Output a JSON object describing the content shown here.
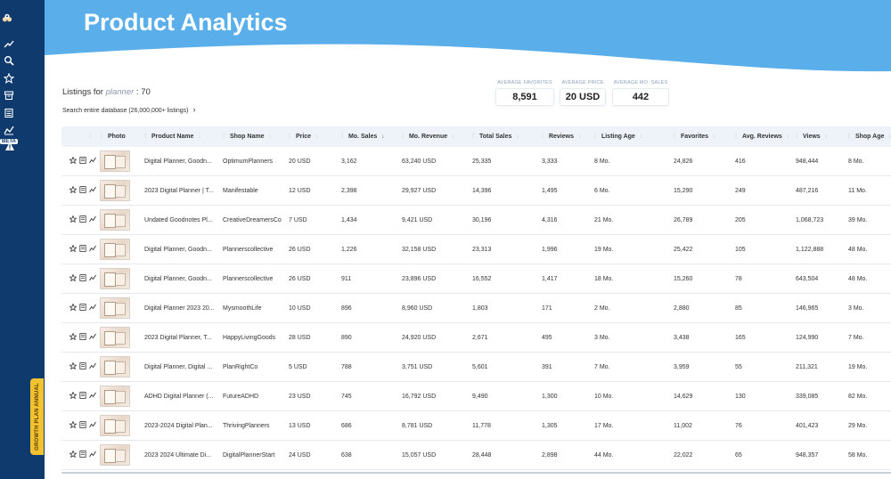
{
  "app": {
    "title": "Product Analytics"
  },
  "sidebar": {
    "icons": [
      "logo-icon",
      "trend-icon",
      "search-icon",
      "star-icon",
      "archive-icon",
      "calculator-icon",
      "chart-icon",
      "warning-icon"
    ],
    "beta_label": "BETA",
    "growth_tab": "GROWTH PLAN ANNUAL"
  },
  "listings": {
    "prefix": "Listings for",
    "keyword": "planner",
    "count_text": ": 70"
  },
  "search_db": {
    "label": "Search entire database (26,000,000+ listings)",
    "chevron": "›"
  },
  "stats": [
    {
      "label": "AVERAGE FAVORITES",
      "value": "8,591"
    },
    {
      "label": "AVERAGE PRICE",
      "value": "20 USD"
    },
    {
      "label": "AVERAGE MO. SALES",
      "value": "442"
    }
  ],
  "table": {
    "columns": [
      "Photo",
      "Product Name",
      "Shop Name",
      "Price",
      "Mo. Sales",
      "Mo. Revenue",
      "Total Sales",
      "Reviews",
      "Listing Age",
      "Favorites",
      "Avg. Reviews",
      "Views",
      "Shop Age"
    ],
    "sorted_column": "Mo. Sales",
    "rows": [
      [
        "Digital Planner, Goodn...",
        "OptimumPlanners",
        "20 USD",
        "3,162",
        "63,240 USD",
        "25,335",
        "3,333",
        "8 Mo.",
        "24,826",
        "416",
        "948,444",
        "8 Mo."
      ],
      [
        "2023 Digital Planner | T...",
        "Manifestable",
        "12 USD",
        "2,398",
        "29,927 USD",
        "14,396",
        "1,495",
        "6 Mo.",
        "15,290",
        "249",
        "487,216",
        "11 Mo."
      ],
      [
        "Undated Goodnotes Pl...",
        "CreativeDreamersCo",
        "7 USD",
        "1,434",
        "9,421 USD",
        "30,196",
        "4,316",
        "21 Mo.",
        "26,789",
        "205",
        "1,068,723",
        "39 Mo."
      ],
      [
        "Digital Planner, Goodn...",
        "Plannerscollective",
        "26 USD",
        "1,226",
        "32,158 USD",
        "23,313",
        "1,996",
        "19 Mo.",
        "25,422",
        "105",
        "1,122,888",
        "48 Mo."
      ],
      [
        "Digital Planner, Goodn...",
        "Plannerscollective",
        "26 USD",
        "911",
        "23,896 USD",
        "16,552",
        "1,417",
        "18 Mo.",
        "15,260",
        "78",
        "643,504",
        "48 Mo."
      ],
      [
        "Digital Planner 2023 20...",
        "MysmoothLife",
        "10 USD",
        "896",
        "8,960 USD",
        "1,803",
        "171",
        "2 Mo.",
        "2,880",
        "85",
        "146,965",
        "3 Mo."
      ],
      [
        "2023 Digital Planner, T...",
        "HappyLivingGoods",
        "28 USD",
        "890",
        "24,920 USD",
        "2,671",
        "495",
        "3 Mo.",
        "3,438",
        "165",
        "124,990",
        "7 Mo."
      ],
      [
        "Digital Planner, Digital ...",
        "PlanRightCo",
        "5 USD",
        "788",
        "3,751 USD",
        "5,601",
        "391",
        "7 Mo.",
        "3,959",
        "55",
        "211,321",
        "19 Mo."
      ],
      [
        "ADHD Digital Planner (...",
        "FutureADHD",
        "23 USD",
        "745",
        "16,792 USD",
        "9,490",
        "1,300",
        "10 Mo.",
        "14,629",
        "130",
        "339,085",
        "82 Mo."
      ],
      [
        "2023-2024 Digital Plan...",
        "ThrivingPlanners",
        "13 USD",
        "686",
        "8,781 USD",
        "11,778",
        "1,305",
        "17 Mo.",
        "11,002",
        "76",
        "401,423",
        "29 Mo."
      ],
      [
        "2023 2024 Ultimate Di...",
        "DigitalPlannerStart",
        "24 USD",
        "638",
        "15,057 USD",
        "28,448",
        "2,898",
        "44 Mo.",
        "22,022",
        "65",
        "948,357",
        "58 Mo."
      ]
    ]
  },
  "colors": {
    "sidebar": "#0f3a6e",
    "banner": "#5aaeea",
    "accent": "#f2c230"
  }
}
